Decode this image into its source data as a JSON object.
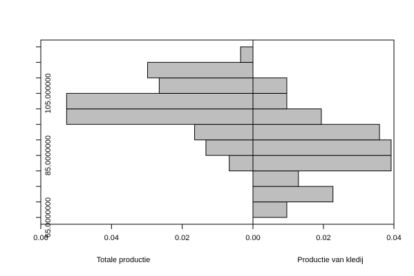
{
  "chart_data": {
    "type": "histogram",
    "bins": [
      65,
      70,
      75,
      80,
      85,
      90,
      95,
      100,
      105,
      110,
      115,
      120
    ],
    "ylim": [
      62.8,
      122.2
    ],
    "yticks": [
      {
        "value": 65,
        "label": "65.0000000"
      },
      {
        "value": 85,
        "label": "85.0000000"
      },
      {
        "value": 105,
        "label": "105.000000"
      }
    ],
    "series": [
      {
        "side": "left",
        "color": "#bebebe",
        "xlabel": "Totale productie",
        "values": [
          0,
          0,
          0,
          0.0067,
          0.0133,
          0.0165,
          0.0527,
          0.0527,
          0.0265,
          0.0298,
          0.0035
        ],
        "xlim": [
          0.06,
          0
        ],
        "xticks": [
          0.06,
          0.04,
          0.02,
          {
            "value": 0,
            "label": "0.00"
          }
        ]
      },
      {
        "side": "right",
        "color": "#bebebe",
        "xlabel": "Productie van kledij",
        "values": [
          0.0096,
          0.0227,
          0.0129,
          0.0392,
          0.0392,
          0.0359,
          0.0194,
          0.0096,
          0.0096,
          0,
          0
        ],
        "xlim": [
          0,
          0.04
        ],
        "xticks": [
          0.02,
          0.04
        ]
      }
    ]
  }
}
